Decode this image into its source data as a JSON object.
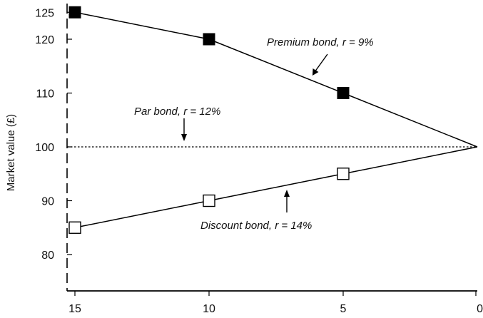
{
  "chart_data": {
    "type": "line",
    "title": "",
    "xlabel": "",
    "ylabel": "Market value (£)",
    "x_reversed": true,
    "xlim": [
      15,
      0
    ],
    "ylim": [
      75,
      126
    ],
    "x_ticks": [
      "15",
      "10",
      "5",
      "0"
    ],
    "y_ticks": [
      "80",
      "90",
      "100",
      "110",
      "120",
      "125"
    ],
    "grid": false,
    "series": [
      {
        "name": "Premium bond, r = 9%",
        "x": [
          15,
          10,
          5,
          0
        ],
        "y": [
          125,
          120,
          110,
          100
        ],
        "marker": "filled-square",
        "line_style": "solid",
        "color": "#000000"
      },
      {
        "name": "Par bond, r = 12%",
        "x": [
          15,
          0
        ],
        "y": [
          100,
          100
        ],
        "marker": "none",
        "line_style": "dotted",
        "color": "#000000"
      },
      {
        "name": "Discount bond, r = 14%",
        "x": [
          15,
          10,
          5,
          0
        ],
        "y": [
          85,
          90,
          95,
          100
        ],
        "marker": "open-square",
        "line_style": "solid",
        "color": "#000000"
      }
    ],
    "annotations": [
      {
        "text": "Premium bond, r = 9%",
        "series": 0,
        "arrow_direction": "down-left"
      },
      {
        "text": "Par bond, r = 12%",
        "series": 1,
        "arrow_direction": "down"
      },
      {
        "text": "Discount bond, r = 14%",
        "series": 2,
        "arrow_direction": "up"
      }
    ]
  }
}
